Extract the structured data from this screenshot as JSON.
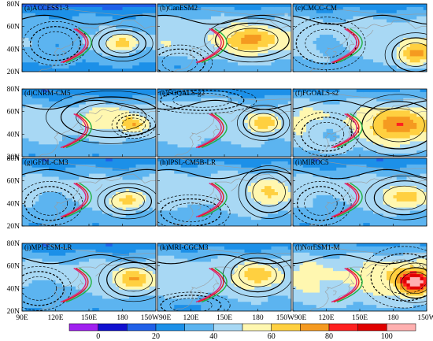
{
  "chart_data": {
    "type": "heatmap",
    "layout": {
      "rows": 4,
      "cols": 3
    },
    "x_ticks": [
      "90E",
      "120E",
      "150E",
      "180",
      "150W"
    ],
    "y_ticks": [
      "20N",
      "40N",
      "60N",
      "80N"
    ],
    "xlim": [
      90,
      210
    ],
    "ylim": [
      20,
      80
    ],
    "colorbar": {
      "ticks": [
        "0",
        "20",
        "40",
        "60",
        "80",
        "100"
      ],
      "bins": [
        {
          "from": -10,
          "to": 0,
          "color": "#a020f0"
        },
        {
          "from": 0,
          "to": 10,
          "color": "#1010d0"
        },
        {
          "from": 10,
          "to": 20,
          "color": "#2060e8"
        },
        {
          "from": 20,
          "to": 30,
          "color": "#1c90e8"
        },
        {
          "from": 30,
          "to": 40,
          "color": "#5cb4f0"
        },
        {
          "from": 40,
          "to": 50,
          "color": "#a8d8f4"
        },
        {
          "from": 50,
          "to": 60,
          "color": "#fff7b0"
        },
        {
          "from": 60,
          "to": 70,
          "color": "#ffd040"
        },
        {
          "from": 70,
          "to": 80,
          "color": "#f59a20"
        },
        {
          "from": 80,
          "to": 90,
          "color": "#ff2020"
        },
        {
          "from": 90,
          "to": 100,
          "color": "#e00000"
        },
        {
          "from": 100,
          "to": 110,
          "color": "#ffb0b0"
        }
      ]
    },
    "panels": [
      {
        "title": "(a)ACCESS1-3",
        "base": 26,
        "blobs": [
          {
            "lon": 180,
            "lat": 45,
            "amp": 28,
            "rlon": 14,
            "rlat": 8
          },
          {
            "lon": 120,
            "lat": 45,
            "amp": -8,
            "rlon": 15,
            "rlat": 10
          }
        ]
      },
      {
        "title": "(b)CanESM2",
        "base": 35,
        "blobs": [
          {
            "lon": 175,
            "lat": 48,
            "amp": 26,
            "rlon": 22,
            "rlat": 10
          },
          {
            "lon": 110,
            "lat": 28,
            "amp": -10,
            "rlon": 15,
            "rlat": 8
          }
        ]
      },
      {
        "title": "(c)CMCC-CM",
        "base": 33,
        "blobs": [
          {
            "lon": 200,
            "lat": 35,
            "amp": 34,
            "rlon": 14,
            "rlat": 10
          },
          {
            "lon": 120,
            "lat": 45,
            "amp": -10,
            "rlon": 18,
            "rlat": 12
          }
        ]
      },
      {
        "title": "(d)CNRM-CM5",
        "base": 30,
        "blobs": [
          {
            "lon": 170,
            "lat": 55,
            "amp": 14,
            "rlon": 30,
            "rlat": 12
          },
          {
            "lon": 190,
            "lat": 48,
            "amp": 20,
            "rlon": 10,
            "rlat": 6
          }
        ]
      },
      {
        "title": "(e)FGOALS-g2",
        "base": 32,
        "blobs": [
          {
            "lon": 185,
            "lat": 50,
            "amp": 24,
            "rlon": 12,
            "rlat": 8
          },
          {
            "lon": 130,
            "lat": 70,
            "amp": 8,
            "rlon": 25,
            "rlat": 6
          }
        ]
      },
      {
        "title": "(f)FGOALS-s2",
        "base": 37,
        "blobs": [
          {
            "lon": 185,
            "lat": 48,
            "amp": 30,
            "rlon": 22,
            "rlat": 14
          },
          {
            "lon": 120,
            "lat": 40,
            "amp": -10,
            "rlon": 15,
            "rlat": 10
          }
        ]
      },
      {
        "title": "(g)GFDL-CM3",
        "base": 30,
        "blobs": [
          {
            "lon": 185,
            "lat": 42,
            "amp": 24,
            "rlon": 14,
            "rlat": 8
          },
          {
            "lon": 115,
            "lat": 40,
            "amp": -10,
            "rlon": 15,
            "rlat": 10
          }
        ]
      },
      {
        "title": "(h)IPSL-CM5B-LR",
        "base": 33,
        "blobs": [
          {
            "lon": 190,
            "lat": 50,
            "amp": 16,
            "rlon": 14,
            "rlat": 12
          },
          {
            "lon": 120,
            "lat": 32,
            "amp": -10,
            "rlon": 18,
            "rlat": 8
          }
        ]
      },
      {
        "title": "(i)MIROC5",
        "base": 30,
        "blobs": [
          {
            "lon": 190,
            "lat": 45,
            "amp": 24,
            "rlon": 18,
            "rlat": 10
          },
          {
            "lon": 115,
            "lat": 40,
            "amp": -6,
            "rlon": 14,
            "rlat": 10
          }
        ]
      },
      {
        "title": "(j)MPI-ESM-LR",
        "base": 30,
        "blobs": [
          {
            "lon": 190,
            "lat": 48,
            "amp": 28,
            "rlon": 16,
            "rlat": 10
          },
          {
            "lon": 105,
            "lat": 40,
            "amp": -8,
            "rlon": 15,
            "rlat": 10
          }
        ]
      },
      {
        "title": "(k)MRI-CGCM3",
        "base": 33,
        "blobs": [
          {
            "lon": 180,
            "lat": 52,
            "amp": 22,
            "rlon": 16,
            "rlat": 10
          },
          {
            "lon": 120,
            "lat": 25,
            "amp": -10,
            "rlon": 18,
            "rlat": 6
          }
        ]
      },
      {
        "title": "(l)NorESM1-M",
        "base": 37,
        "blobs": [
          {
            "lon": 200,
            "lat": 45,
            "amp": 52,
            "rlon": 12,
            "rlat": 9
          },
          {
            "lon": 190,
            "lat": 50,
            "amp": 16,
            "rlon": 20,
            "rlat": 14
          }
        ]
      }
    ]
  }
}
